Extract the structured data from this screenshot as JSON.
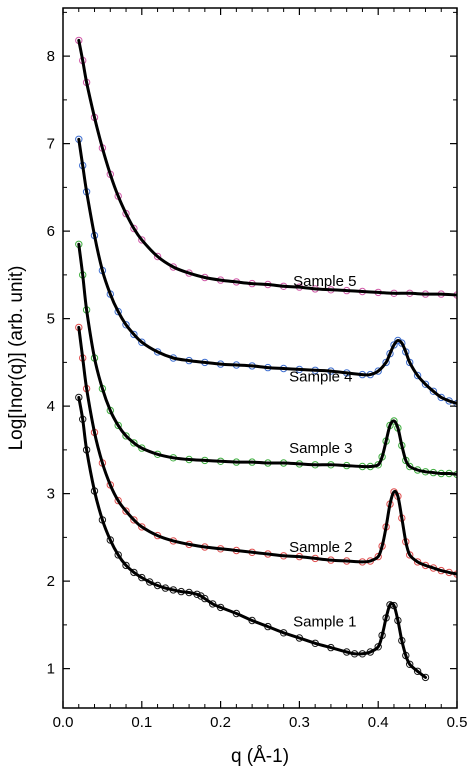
{
  "chart_data": {
    "type": "scatter",
    "title": "",
    "xlabel": "q (Å-1)",
    "ylabel": "Log[Inor(q)] (arb. unit)",
    "xlim": [
      0.0,
      0.5
    ],
    "ylim": [
      0.55,
      8.55
    ],
    "x_ticks": [
      0.0,
      0.1,
      0.2,
      0.3,
      0.4,
      0.5
    ],
    "x_tick_labels": [
      "0.0",
      "0.1",
      "0.2",
      "0.3",
      "0.4",
      "0.5"
    ],
    "y_ticks": [
      1,
      2,
      3,
      4,
      5,
      6,
      7,
      8
    ],
    "y_tick_labels": [
      "1",
      "2",
      "3",
      "4",
      "5",
      "6",
      "7",
      "8"
    ],
    "grid": false,
    "legend": "none",
    "fit_color": "#000000",
    "series": [
      {
        "name": "Sample 1",
        "marker_color": "#1a1a1a",
        "x": [
          0.02,
          0.025,
          0.03,
          0.04,
          0.05,
          0.06,
          0.07,
          0.08,
          0.09,
          0.1,
          0.11,
          0.12,
          0.13,
          0.14,
          0.15,
          0.16,
          0.17,
          0.175,
          0.18,
          0.19,
          0.2,
          0.22,
          0.24,
          0.26,
          0.28,
          0.3,
          0.32,
          0.34,
          0.36,
          0.37,
          0.38,
          0.39,
          0.4,
          0.405,
          0.41,
          0.415,
          0.42,
          0.425,
          0.43,
          0.435,
          0.44,
          0.45,
          0.46
        ],
        "y": [
          4.1,
          3.85,
          3.5,
          3.03,
          2.7,
          2.47,
          2.3,
          2.18,
          2.1,
          2.04,
          1.99,
          1.95,
          1.92,
          1.9,
          1.88,
          1.87,
          1.85,
          1.83,
          1.8,
          1.74,
          1.7,
          1.63,
          1.55,
          1.48,
          1.41,
          1.35,
          1.29,
          1.24,
          1.19,
          1.17,
          1.17,
          1.19,
          1.25,
          1.38,
          1.58,
          1.73,
          1.72,
          1.55,
          1.32,
          1.15,
          1.05,
          0.97,
          0.9
        ]
      },
      {
        "name": "Sample 2",
        "marker_color": "#e05050",
        "x": [
          0.02,
          0.025,
          0.03,
          0.04,
          0.05,
          0.06,
          0.07,
          0.08,
          0.09,
          0.1,
          0.12,
          0.14,
          0.16,
          0.18,
          0.2,
          0.22,
          0.24,
          0.26,
          0.28,
          0.3,
          0.32,
          0.34,
          0.36,
          0.38,
          0.39,
          0.4,
          0.405,
          0.41,
          0.415,
          0.42,
          0.425,
          0.43,
          0.435,
          0.44,
          0.45,
          0.46,
          0.47,
          0.48,
          0.49,
          0.5
        ],
        "y": [
          4.9,
          4.55,
          4.2,
          3.7,
          3.35,
          3.1,
          2.92,
          2.8,
          2.7,
          2.62,
          2.52,
          2.46,
          2.42,
          2.39,
          2.37,
          2.35,
          2.33,
          2.31,
          2.29,
          2.28,
          2.26,
          2.24,
          2.23,
          2.22,
          2.23,
          2.28,
          2.4,
          2.62,
          2.88,
          3.02,
          2.97,
          2.72,
          2.45,
          2.3,
          2.22,
          2.18,
          2.15,
          2.12,
          2.1,
          2.08
        ]
      },
      {
        "name": "Sample 3",
        "marker_color": "#3fae3f",
        "x": [
          0.02,
          0.025,
          0.03,
          0.04,
          0.05,
          0.06,
          0.07,
          0.08,
          0.09,
          0.1,
          0.12,
          0.14,
          0.16,
          0.18,
          0.2,
          0.22,
          0.24,
          0.26,
          0.28,
          0.3,
          0.32,
          0.34,
          0.36,
          0.38,
          0.39,
          0.4,
          0.405,
          0.41,
          0.415,
          0.42,
          0.425,
          0.43,
          0.435,
          0.44,
          0.45,
          0.46,
          0.47,
          0.48,
          0.49,
          0.5
        ],
        "y": [
          5.85,
          5.5,
          5.1,
          4.55,
          4.2,
          3.95,
          3.78,
          3.66,
          3.58,
          3.52,
          3.45,
          3.41,
          3.39,
          3.38,
          3.37,
          3.36,
          3.36,
          3.35,
          3.35,
          3.34,
          3.33,
          3.33,
          3.32,
          3.31,
          3.31,
          3.33,
          3.42,
          3.6,
          3.78,
          3.83,
          3.75,
          3.55,
          3.38,
          3.31,
          3.27,
          3.25,
          3.24,
          3.23,
          3.23,
          3.22
        ]
      },
      {
        "name": "Sample 4",
        "marker_color": "#3f6fd0",
        "x": [
          0.02,
          0.025,
          0.03,
          0.04,
          0.05,
          0.06,
          0.07,
          0.08,
          0.09,
          0.1,
          0.12,
          0.14,
          0.16,
          0.18,
          0.2,
          0.22,
          0.24,
          0.26,
          0.28,
          0.3,
          0.32,
          0.34,
          0.36,
          0.38,
          0.39,
          0.4,
          0.41,
          0.415,
          0.42,
          0.425,
          0.43,
          0.435,
          0.44,
          0.45,
          0.46,
          0.47,
          0.48,
          0.49,
          0.5
        ],
        "y": [
          7.05,
          6.75,
          6.45,
          5.95,
          5.55,
          5.28,
          5.08,
          4.93,
          4.82,
          4.73,
          4.62,
          4.55,
          4.52,
          4.5,
          4.48,
          4.47,
          4.46,
          4.44,
          4.43,
          4.42,
          4.41,
          4.4,
          4.38,
          4.36,
          4.36,
          4.4,
          4.5,
          4.6,
          4.7,
          4.75,
          4.72,
          4.62,
          4.5,
          4.35,
          4.25,
          4.17,
          4.1,
          4.06,
          4.03
        ]
      },
      {
        "name": "Sample 5",
        "marker_color": "#d05aa8",
        "x": [
          0.02,
          0.025,
          0.03,
          0.04,
          0.05,
          0.06,
          0.07,
          0.08,
          0.09,
          0.1,
          0.12,
          0.14,
          0.16,
          0.18,
          0.2,
          0.22,
          0.24,
          0.26,
          0.28,
          0.3,
          0.32,
          0.34,
          0.36,
          0.38,
          0.4,
          0.42,
          0.44,
          0.46,
          0.48,
          0.5
        ],
        "y": [
          8.18,
          7.95,
          7.7,
          7.3,
          6.95,
          6.65,
          6.4,
          6.2,
          6.03,
          5.9,
          5.71,
          5.59,
          5.52,
          5.47,
          5.44,
          5.42,
          5.4,
          5.39,
          5.37,
          5.36,
          5.34,
          5.33,
          5.32,
          5.31,
          5.3,
          5.29,
          5.29,
          5.28,
          5.28,
          5.27
        ]
      }
    ],
    "series_labels": [
      {
        "text": "Sample 1",
        "x": 0.292,
        "y": 1.54
      },
      {
        "text": "Sample 2",
        "x": 0.287,
        "y": 2.39
      },
      {
        "text": "Sample 3",
        "x": 0.287,
        "y": 3.52
      },
      {
        "text": "Sample 4",
        "x": 0.287,
        "y": 4.34
      },
      {
        "text": "Sample 5",
        "x": 0.292,
        "y": 5.43
      }
    ]
  }
}
